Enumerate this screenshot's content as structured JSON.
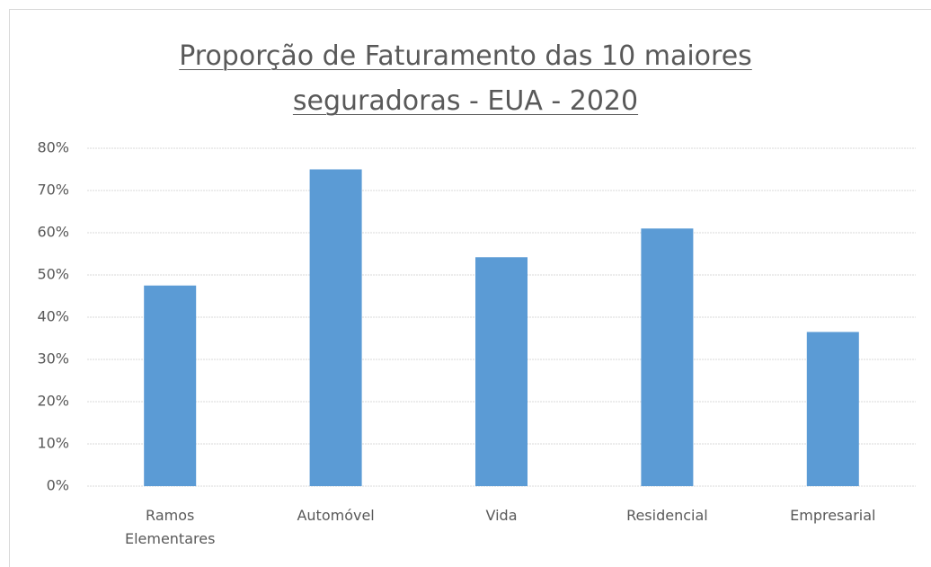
{
  "chart_data": {
    "type": "bar",
    "title": "Proporção de Faturamento das 10 maiores seguradoras - EUA - 2020",
    "categories": [
      "Ramos Elementares",
      "Automóvel",
      "Vida",
      "Residencial",
      "Empresarial"
    ],
    "values": [
      47.5,
      75,
      54.2,
      61,
      36.5
    ],
    "color": "#5b9bd5",
    "ylim": [
      0,
      80
    ],
    "yticks": [
      {
        "value": 0,
        "label": "0%"
      },
      {
        "value": 10,
        "label": "10%"
      },
      {
        "value": 20,
        "label": "20%"
      },
      {
        "value": 30,
        "label": "30%"
      },
      {
        "value": 40,
        "label": "40%"
      },
      {
        "value": 50,
        "label": "50%"
      },
      {
        "value": 60,
        "label": "60%"
      },
      {
        "value": 70,
        "label": "70%"
      },
      {
        "value": 80,
        "label": "80%"
      }
    ],
    "grid": true
  }
}
